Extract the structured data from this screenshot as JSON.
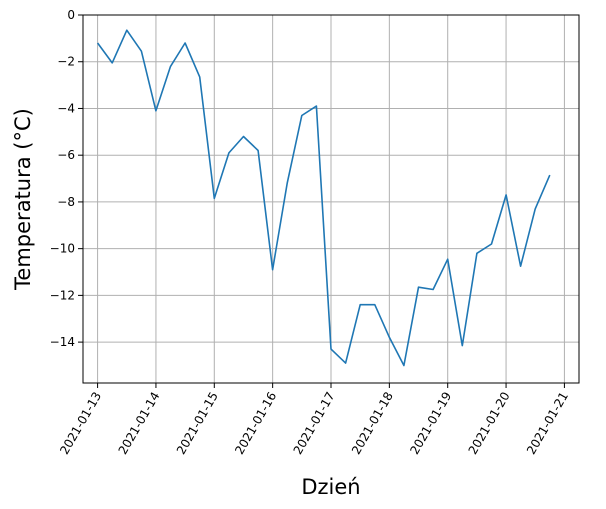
{
  "chart_data": {
    "type": "line",
    "xlabel": "Dzień",
    "ylabel": "Temperatura (°C)",
    "xlim": [
      "2021-01-12T18:00",
      "2021-01-21T06:00"
    ],
    "ylim": [
      -15.75,
      0
    ],
    "x_ticks": [
      "2021-01-13",
      "2021-01-14",
      "2021-01-15",
      "2021-01-16",
      "2021-01-17",
      "2021-01-18",
      "2021-01-19",
      "2021-01-20",
      "2021-01-21"
    ],
    "y_ticks": [
      0,
      -2,
      -4,
      -6,
      -8,
      -10,
      -12,
      -14
    ],
    "y_tick_labels": [
      "0",
      "−2",
      "−4",
      "−6",
      "−8",
      "−10",
      "−12",
      "−14"
    ],
    "grid": true,
    "line_color": "#1f77b4",
    "series": [
      {
        "x": [
          "2021-01-13T00:00",
          "2021-01-13T06:00",
          "2021-01-13T12:00",
          "2021-01-13T18:00",
          "2021-01-14T00:00",
          "2021-01-14T06:00",
          "2021-01-14T12:00",
          "2021-01-14T18:00",
          "2021-01-15T00:00",
          "2021-01-15T06:00",
          "2021-01-15T12:00",
          "2021-01-15T18:00",
          "2021-01-16T00:00",
          "2021-01-16T06:00",
          "2021-01-16T12:00",
          "2021-01-16T18:00",
          "2021-01-17T00:00",
          "2021-01-17T06:00",
          "2021-01-17T12:00",
          "2021-01-17T18:00",
          "2021-01-18T00:00",
          "2021-01-18T06:00",
          "2021-01-18T12:00",
          "2021-01-18T18:00",
          "2021-01-19T00:00",
          "2021-01-19T06:00",
          "2021-01-19T12:00",
          "2021-01-19T18:00",
          "2021-01-20T00:00",
          "2021-01-20T06:00",
          "2021-01-20T12:00",
          "2021-01-20T18:00"
        ],
        "values": [
          -1.2,
          -2.05,
          -0.65,
          -1.55,
          -4.1,
          -2.2,
          -1.2,
          -2.65,
          -7.85,
          -5.9,
          -5.2,
          -5.8,
          -10.9,
          -7.2,
          -4.3,
          -3.9,
          -14.3,
          -14.9,
          -12.4,
          -12.4,
          -13.8,
          -15.0,
          -11.65,
          -11.75,
          -10.45,
          -14.15,
          -10.2,
          -9.8,
          -7.7,
          -10.75,
          -8.3,
          -6.85
        ]
      }
    ]
  }
}
